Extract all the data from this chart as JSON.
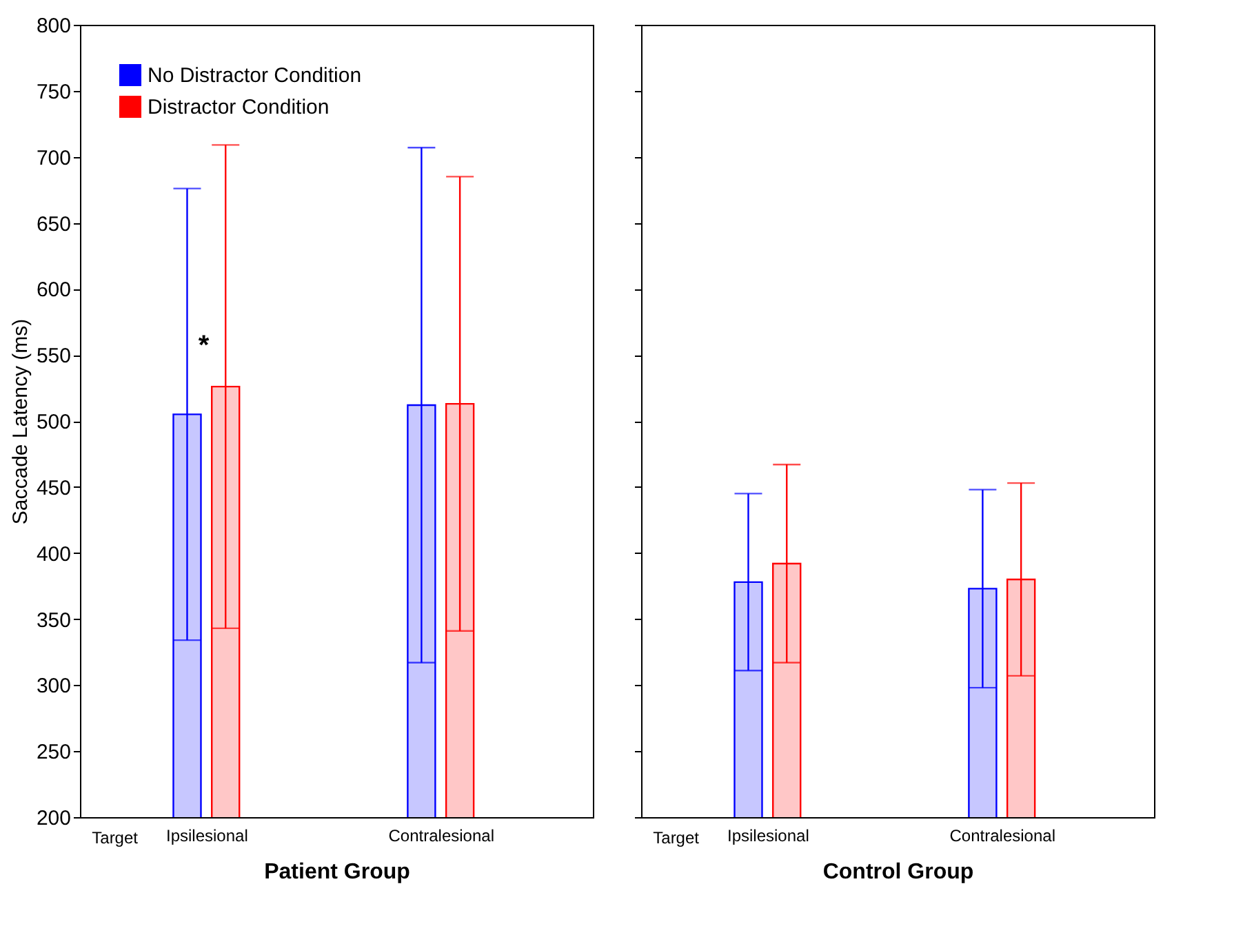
{
  "chart_data": [
    {
      "type": "bar",
      "xlabel": "Patient Group",
      "ylabel": "Saccade Latency (ms)",
      "categories": [
        "Ipsilesional",
        "Contralesional"
      ],
      "ylim": [
        200,
        800
      ],
      "yticks": [
        200,
        250,
        300,
        350,
        400,
        450,
        500,
        550,
        600,
        650,
        700,
        750,
        800
      ],
      "grid": false,
      "legend": "top left",
      "series": [
        {
          "name": "No Distractor Condition",
          "color": "#0000ff",
          "values": [
            505,
            512
          ],
          "errors": [
            171,
            195
          ]
        },
        {
          "name": "Distractor Condition",
          "color": "#ff0000",
          "values": [
            526,
            513
          ],
          "errors": [
            183,
            172
          ]
        }
      ],
      "annotations": [
        "Target",
        "*"
      ]
    },
    {
      "type": "bar",
      "xlabel": "Control Group",
      "categories": [
        "Ipsilesional",
        "Contralesional"
      ],
      "ylim": [
        200,
        800
      ],
      "yticks": [
        200,
        250,
        300,
        350,
        400,
        450,
        500,
        550,
        600,
        650,
        700,
        750,
        800
      ],
      "grid": false,
      "legend": false,
      "tick_labels": "x",
      "series": [
        {
          "color": "#0000ff",
          "values": [
            378,
            373
          ],
          "errors": [
            67,
            75
          ]
        },
        {
          "color": "#ff0000",
          "values": [
            392,
            380
          ],
          "errors": [
            75,
            73
          ]
        }
      ],
      "annotations": [
        "Target"
      ]
    }
  ]
}
